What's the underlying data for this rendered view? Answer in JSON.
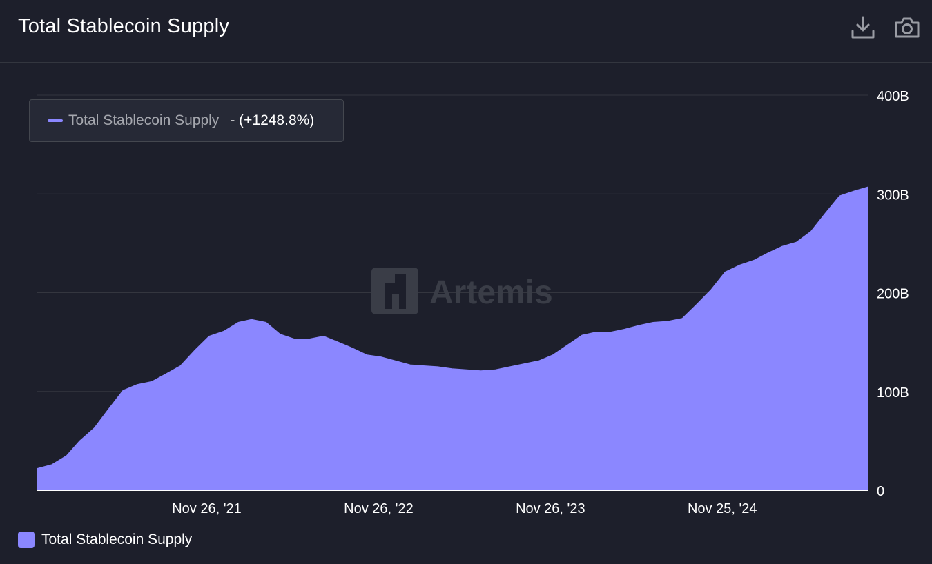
{
  "header": {
    "title": "Total Stablecoin Supply",
    "download_icon": "download-icon",
    "camera_icon": "camera-icon"
  },
  "tooltip": {
    "series": "Total Stablecoin Supply",
    "value": "- (+1248.8%)"
  },
  "watermark": "Artemis",
  "legend": {
    "label": "Total Stablecoin Supply"
  },
  "colors": {
    "series": "#8b87ff",
    "background": "#1d1f2b",
    "grid": "#34363f"
  },
  "chart_data": {
    "type": "area",
    "title": "Total Stablecoin Supply",
    "xlabel": "",
    "ylabel": "",
    "ylim": [
      0,
      400
    ],
    "yunit": "B",
    "yticks": [
      {
        "value": 0,
        "label": "0"
      },
      {
        "value": 100,
        "label": "100B"
      },
      {
        "value": 200,
        "label": "200B"
      },
      {
        "value": 300,
        "label": "300B"
      },
      {
        "value": 400,
        "label": "400B"
      }
    ],
    "xlim": [
      "2020-12-01",
      "2025-09-30"
    ],
    "xticks": [
      {
        "date": "2021-11-26",
        "label": "Nov 26, '21"
      },
      {
        "date": "2022-11-26",
        "label": "Nov 26, '22"
      },
      {
        "date": "2023-11-26",
        "label": "Nov 26, '23"
      },
      {
        "date": "2024-11-25",
        "label": "Nov 25, '24"
      }
    ],
    "grid": true,
    "legend_position": "bottom-left",
    "series": [
      {
        "name": "Total Stablecoin Supply",
        "points": [
          [
            "2020-12-01",
            22
          ],
          [
            "2021-01-01",
            26
          ],
          [
            "2021-02-01",
            35
          ],
          [
            "2021-03-01",
            50
          ],
          [
            "2021-04-01",
            63
          ],
          [
            "2021-05-01",
            82
          ],
          [
            "2021-06-01",
            101
          ],
          [
            "2021-07-01",
            107
          ],
          [
            "2021-08-01",
            110
          ],
          [
            "2021-09-01",
            118
          ],
          [
            "2021-10-01",
            126
          ],
          [
            "2021-11-01",
            142
          ],
          [
            "2021-12-01",
            156
          ],
          [
            "2022-01-01",
            161
          ],
          [
            "2022-02-01",
            170
          ],
          [
            "2022-03-01",
            173
          ],
          [
            "2022-04-01",
            170
          ],
          [
            "2022-05-01",
            158
          ],
          [
            "2022-06-01",
            153
          ],
          [
            "2022-07-01",
            153
          ],
          [
            "2022-08-01",
            156
          ],
          [
            "2022-09-01",
            150
          ],
          [
            "2022-10-01",
            144
          ],
          [
            "2022-11-01",
            137
          ],
          [
            "2022-12-01",
            135
          ],
          [
            "2023-01-01",
            131
          ],
          [
            "2023-02-01",
            127
          ],
          [
            "2023-03-01",
            126
          ],
          [
            "2023-04-01",
            125
          ],
          [
            "2023-05-01",
            123
          ],
          [
            "2023-06-01",
            122
          ],
          [
            "2023-07-01",
            121
          ],
          [
            "2023-08-01",
            122
          ],
          [
            "2023-09-01",
            125
          ],
          [
            "2023-10-01",
            128
          ],
          [
            "2023-11-01",
            131
          ],
          [
            "2023-12-01",
            137
          ],
          [
            "2024-01-01",
            147
          ],
          [
            "2024-02-01",
            157
          ],
          [
            "2024-03-01",
            160
          ],
          [
            "2024-04-01",
            160
          ],
          [
            "2024-05-01",
            163
          ],
          [
            "2024-06-01",
            167
          ],
          [
            "2024-07-01",
            170
          ],
          [
            "2024-08-01",
            171
          ],
          [
            "2024-09-01",
            174
          ],
          [
            "2024-10-01",
            188
          ],
          [
            "2024-11-01",
            203
          ],
          [
            "2024-12-01",
            221
          ],
          [
            "2025-01-01",
            228
          ],
          [
            "2025-02-01",
            233
          ],
          [
            "2025-03-01",
            240
          ],
          [
            "2025-04-01",
            247
          ],
          [
            "2025-05-01",
            251
          ],
          [
            "2025-06-01",
            262
          ],
          [
            "2025-07-01",
            280
          ],
          [
            "2025-08-01",
            298
          ],
          [
            "2025-09-01",
            303
          ],
          [
            "2025-09-30",
            307
          ]
        ]
      }
    ]
  }
}
